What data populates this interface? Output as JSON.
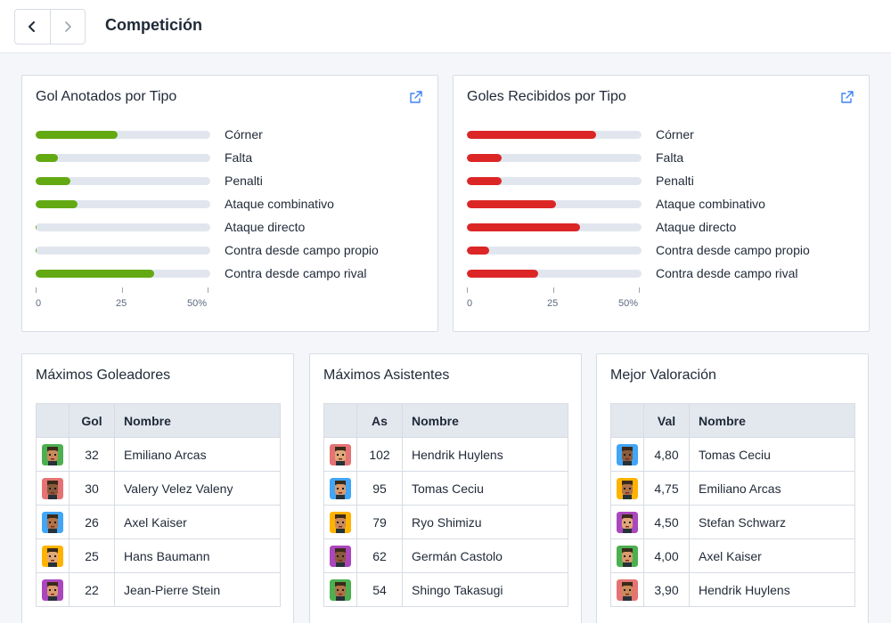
{
  "header": {
    "title": "Competición",
    "back_icon": "chevron-left-icon",
    "forward_icon": "chevron-right-icon"
  },
  "colors": {
    "scored": "#63a912",
    "conceded": "#dc2626",
    "track": "#e1e6ee"
  },
  "scored": {
    "title": "Gol Anotados por Tipo",
    "icon": "external-link-icon",
    "rows": [
      {
        "label": "Córner",
        "value": 23.5
      },
      {
        "label": "Falta",
        "value": 6.5
      },
      {
        "label": "Penalti",
        "value": 10
      },
      {
        "label": "Ataque combinativo",
        "value": 12
      },
      {
        "label": "Ataque directo",
        "value": 0.3
      },
      {
        "label": "Contra desde campo propio",
        "value": 0.3
      },
      {
        "label": "Contra desde campo rival",
        "value": 34
      }
    ],
    "axis": [
      "0",
      "25",
      "50%"
    ]
  },
  "conceded": {
    "title": "Goles Recibidos por Tipo",
    "icon": "external-link-icon",
    "rows": [
      {
        "label": "Córner",
        "value": 37
      },
      {
        "label": "Falta",
        "value": 10
      },
      {
        "label": "Penalti",
        "value": 10
      },
      {
        "label": "Ataque combinativo",
        "value": 25.5
      },
      {
        "label": "Ataque directo",
        "value": 32.5
      },
      {
        "label": "Contra desde campo propio",
        "value": 6.5
      },
      {
        "label": "Contra desde campo rival",
        "value": 20.5
      }
    ],
    "axis": [
      "0",
      "25",
      "50%"
    ]
  },
  "scorers": {
    "title": "Máximos Goleadores",
    "columns": [
      "",
      "Gol",
      "Nombre"
    ],
    "rows": [
      {
        "avatar": "player-avatar-icon",
        "value": "32",
        "name": "Emiliano Arcas"
      },
      {
        "avatar": "player-avatar-icon",
        "value": "30",
        "name": "Valery Velez Valeny"
      },
      {
        "avatar": "player-avatar-icon",
        "value": "26",
        "name": "Axel Kaiser"
      },
      {
        "avatar": "player-avatar-icon",
        "value": "25",
        "name": "Hans Baumann"
      },
      {
        "avatar": "player-avatar-icon",
        "value": "22",
        "name": "Jean-Pierre Stein"
      }
    ]
  },
  "assists": {
    "title": "Máximos Asistentes",
    "columns": [
      "",
      "As",
      "Nombre"
    ],
    "rows": [
      {
        "avatar": "player-avatar-icon",
        "value": "102",
        "name": "Hendrik Huylens"
      },
      {
        "avatar": "player-avatar-icon",
        "value": "95",
        "name": "Tomas Ceciu"
      },
      {
        "avatar": "player-avatar-icon",
        "value": "79",
        "name": "Ryo Shimizu"
      },
      {
        "avatar": "player-avatar-icon",
        "value": "62",
        "name": "Germán Castolo"
      },
      {
        "avatar": "player-avatar-icon",
        "value": "54",
        "name": "Shingo Takasugi"
      }
    ]
  },
  "ratings": {
    "title": "Mejor Valoración",
    "columns": [
      "",
      "Val",
      "Nombre"
    ],
    "rows": [
      {
        "avatar": "player-avatar-icon",
        "value": "4,80",
        "name": "Tomas Ceciu"
      },
      {
        "avatar": "player-avatar-icon",
        "value": "4,75",
        "name": "Emiliano Arcas"
      },
      {
        "avatar": "player-avatar-icon",
        "value": "4,50",
        "name": "Stefan Schwarz"
      },
      {
        "avatar": "player-avatar-icon",
        "value": "4,00",
        "name": "Axel Kaiser"
      },
      {
        "avatar": "player-avatar-icon",
        "value": "3,90",
        "name": "Hendrik Huylens"
      }
    ]
  }
}
